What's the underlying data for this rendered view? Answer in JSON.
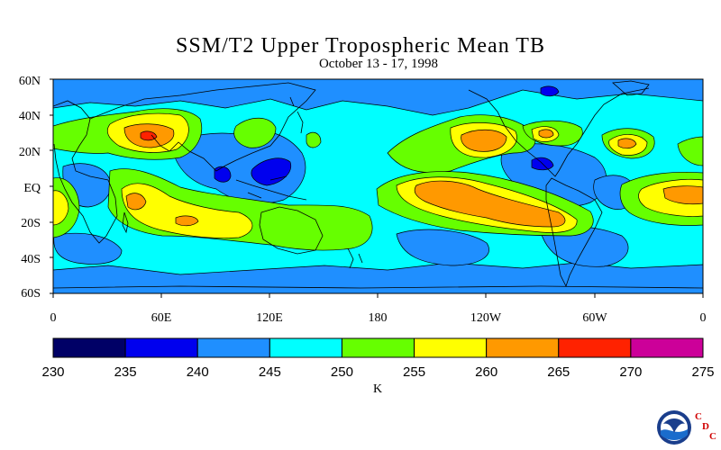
{
  "map": {
    "title": "SSM/T2 Upper Tropospheric Mean TB",
    "subtitle": "October 13 - 17, 1998",
    "lat_labels": [
      "60N",
      "40N",
      "20N",
      "EQ",
      "20S",
      "40S",
      "60S"
    ],
    "lon_labels": [
      "0",
      "60E",
      "120E",
      "180",
      "120W",
      "60W",
      "0"
    ],
    "projection": "equirectangular",
    "lon_range": [
      0,
      360
    ],
    "lat_range": [
      -60,
      60
    ]
  },
  "colorbar": {
    "unit": "K",
    "ticks": [
      "230",
      "235",
      "240",
      "245",
      "250",
      "255",
      "260",
      "265",
      "270",
      "275"
    ],
    "colors": [
      "#000066",
      "#0000ee",
      "#1f8fff",
      "#00ffff",
      "#66ff00",
      "#ffff00",
      "#ff9900",
      "#ff2200",
      "#cc0099"
    ]
  },
  "logo": {
    "agency": "NOAA",
    "lab_letters": [
      "C",
      "D",
      "C"
    ]
  }
}
